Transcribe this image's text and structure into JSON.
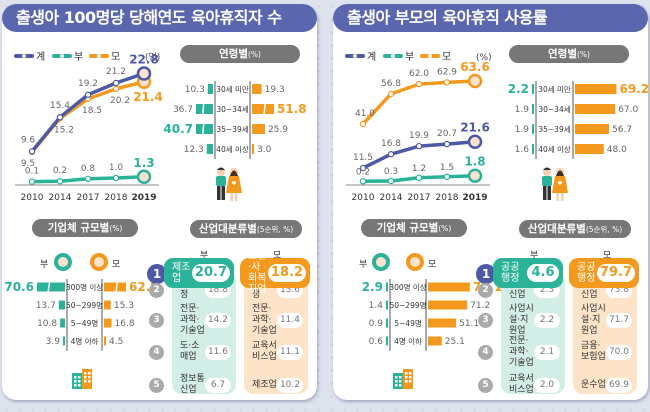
{
  "colors": {
    "total": "#4e59a6",
    "father": "#2bb39a",
    "mother": "#f39a1e",
    "title_bg": "#5a66ae",
    "pill_bg": "#777777",
    "father_light": "#d3ede7",
    "mother_light": "#fde4c8"
  },
  "legend": {
    "total": "계",
    "father": "부",
    "mother": "모"
  },
  "panels": [
    {
      "title": "출생아 100명당 당해연도 육아휴직자 수",
      "unit": "(명)",
      "age_title": "연령별",
      "age_unit": "(%)",
      "size_title": "기업체 규모별",
      "size_unit": "(%)",
      "industry_title": "산업대분류별",
      "industry_unit": "(5순위, %)",
      "father_label": "부",
      "mother_label": "모"
    },
    {
      "title": "출생아 부모의 육아휴직 사용률",
      "unit": "(%)",
      "age_title": "연령별",
      "age_unit": "(%)",
      "size_title": "기업체 규모별",
      "size_unit": "(%)",
      "industry_title": "산업대분류별",
      "industry_unit": "(5순위, %)",
      "father_label": "부",
      "mother_label": "모"
    }
  ],
  "chart_data": [
    {
      "type": "line",
      "title": "출생아 100명당 당해연도 육아휴직자 수",
      "unit": "명",
      "x": [
        "2010",
        "2014",
        "2017",
        "2018",
        "2019"
      ],
      "series": [
        {
          "name": "계",
          "values": [
            9.6,
            15.4,
            19.2,
            21.2,
            22.8
          ]
        },
        {
          "name": "부",
          "values": [
            0.1,
            0.2,
            0.8,
            1.0,
            1.3
          ]
        },
        {
          "name": "모",
          "values": [
            9.5,
            15.2,
            18.5,
            20.2,
            21.4
          ]
        }
      ]
    },
    {
      "type": "bar",
      "title": "연령별 (%) - 육아휴직자",
      "categories": [
        "30세 미만",
        "30~34세",
        "35~39세",
        "40세 이상"
      ],
      "series": [
        {
          "name": "부",
          "values": [
            10.3,
            36.7,
            40.7,
            12.3
          ]
        },
        {
          "name": "모",
          "values": [
            19.3,
            51.8,
            25.9,
            3.0
          ]
        }
      ],
      "highlight": {
        "부": 2,
        "모": 1
      }
    },
    {
      "type": "bar",
      "title": "기업체 규모별 (%) - 육아휴직자",
      "categories": [
        "300명 이상",
        "50~299명",
        "5~49명",
        "4명 이하"
      ],
      "series": [
        {
          "name": "부",
          "values": [
            70.6,
            13.7,
            10.8,
            3.9
          ]
        },
        {
          "name": "모",
          "values": [
            62.8,
            15.3,
            16.8,
            4.5
          ]
        }
      ],
      "highlight": {
        "부": 0,
        "모": 0
      }
    },
    {
      "type": "table",
      "title": "산업대분류별 (5순위, %) - 육아휴직자",
      "series": [
        {
          "name": "부",
          "items": [
            {
              "label": "제조업",
              "value": 20.7
            },
            {
              "label": "공공행정",
              "value": 18.8
            },
            {
              "label": "전문·과학·기술업",
              "value": 14.2
            },
            {
              "label": "도·소매업",
              "value": 11.6
            },
            {
              "label": "정보통신업",
              "value": 6.7
            }
          ]
        },
        {
          "name": "모",
          "items": [
            {
              "label": "보건·사회복지업",
              "value": 18.2
            },
            {
              "label": "공공행정",
              "value": 13.6
            },
            {
              "label": "전문·과학·기술업",
              "value": 11.4
            },
            {
              "label": "교육서비스업",
              "value": 11.1
            },
            {
              "label": "제조업",
              "value": 10.2
            }
          ]
        }
      ]
    },
    {
      "type": "line",
      "title": "출생아 부모의 육아휴직 사용률",
      "unit": "%",
      "x": [
        "2010",
        "2014",
        "2017",
        "2018",
        "2019"
      ],
      "series": [
        {
          "name": "계",
          "values": [
            11.5,
            16.8,
            19.9,
            20.7,
            21.6
          ]
        },
        {
          "name": "부",
          "values": [
            0.2,
            0.3,
            1.2,
            1.5,
            1.8
          ]
        },
        {
          "name": "모",
          "values": [
            41.0,
            56.8,
            62.0,
            62.9,
            63.6
          ]
        }
      ]
    },
    {
      "type": "bar",
      "title": "연령별 (%) - 사용률",
      "categories": [
        "30세 미만",
        "30~34세",
        "35~39세",
        "40세 이상"
      ],
      "series": [
        {
          "name": "부",
          "values": [
            2.2,
            1.9,
            1.9,
            1.6
          ]
        },
        {
          "name": "모",
          "values": [
            69.2,
            67.0,
            56.7,
            48.0
          ]
        }
      ],
      "highlight": {
        "부": 0,
        "모": 0
      }
    },
    {
      "type": "bar",
      "title": "기업체 규모별 (%) - 사용률",
      "categories": [
        "300명 이상",
        "50~299명",
        "5~49명",
        "4명 이하"
      ],
      "series": [
        {
          "name": "부",
          "values": [
            2.9,
            1.4,
            0.9,
            0.6
          ]
        },
        {
          "name": "모",
          "values": [
            76.1,
            71.2,
            51.1,
            25.1
          ]
        }
      ],
      "highlight": {
        "부": 0,
        "모": 0
      }
    },
    {
      "type": "table",
      "title": "산업대분류별 (5순위, %) - 사용률",
      "series": [
        {
          "name": "부",
          "items": [
            {
              "label": "공공행정",
              "value": 4.6
            },
            {
              "label": "정보통신업",
              "value": 2.3
            },
            {
              "label": "사업시설·지원업",
              "value": 2.2
            },
            {
              "label": "전문·과학·기술업",
              "value": 2.1
            },
            {
              "label": "교육서비스업",
              "value": 2.0
            }
          ]
        },
        {
          "name": "모",
          "items": [
            {
              "label": "공공행정",
              "value": 79.7
            },
            {
              "label": "정보통신업",
              "value": 73.8
            },
            {
              "label": "사업시설·지원업",
              "value": 71.7
            },
            {
              "label": "금융·보험업",
              "value": 70.0
            },
            {
              "label": "운수업",
              "value": 69.9
            }
          ]
        }
      ]
    }
  ]
}
